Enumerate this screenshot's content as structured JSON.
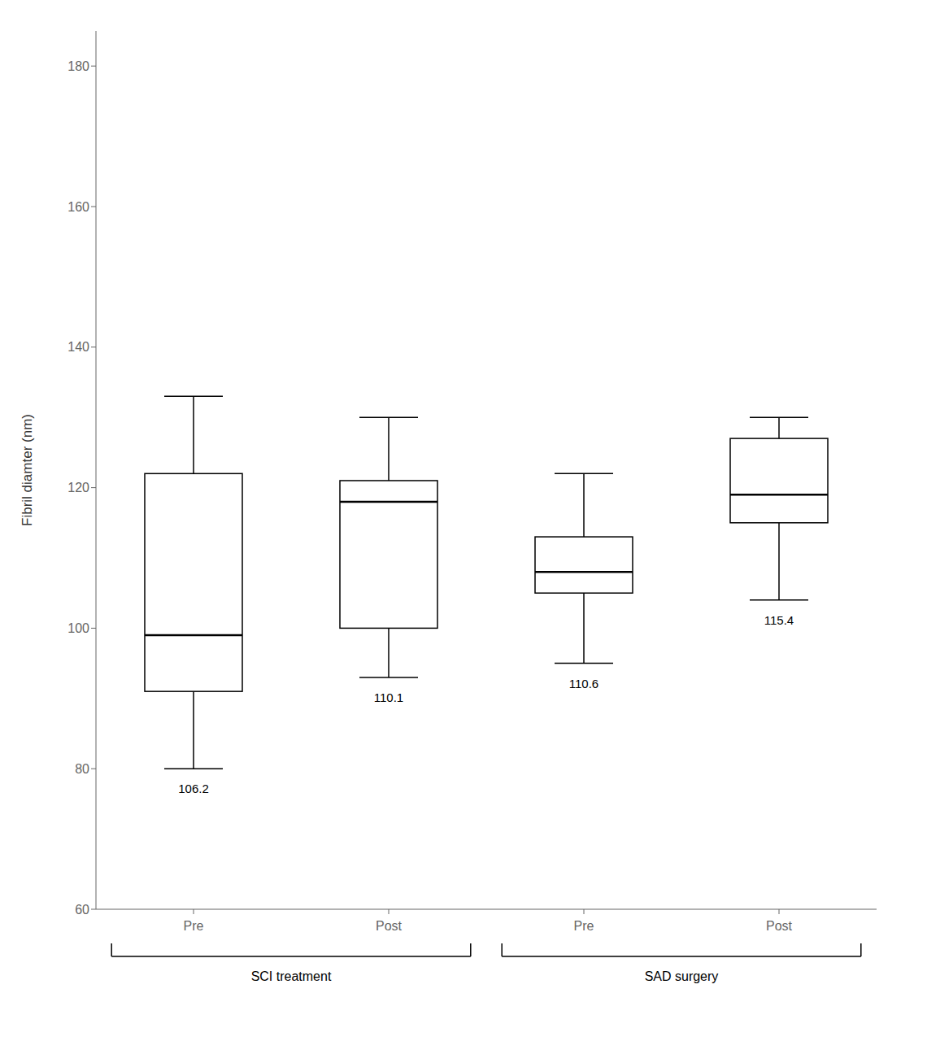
{
  "chart_data": {
    "type": "box",
    "ylabel": "Fibril diamter (nm)",
    "categories": [
      "Pre",
      "Post",
      "Pre",
      "Post"
    ],
    "groups": [
      "SCI treatment",
      "SCI treatment",
      "SAD surgery",
      "SAD surgery"
    ],
    "boxes": [
      {
        "whisker_low": 80,
        "q1": 91,
        "median": 99,
        "q3": 122,
        "whisker_high": 133,
        "mean": 106.2
      },
      {
        "whisker_low": 93,
        "q1": 100,
        "median": 118,
        "q3": 121,
        "whisker_high": 130,
        "mean": 110.1
      },
      {
        "whisker_low": 95,
        "q1": 105,
        "median": 108,
        "q3": 113,
        "whisker_high": 122,
        "mean": 110.6
      },
      {
        "whisker_low": 104,
        "q1": 115,
        "median": 119,
        "q3": 127,
        "whisker_high": 130,
        "mean": 115.4
      }
    ],
    "color": "#000000",
    "ylim": [
      60,
      185
    ],
    "yticks": [
      60,
      80,
      100,
      120,
      140,
      160,
      180
    ]
  }
}
